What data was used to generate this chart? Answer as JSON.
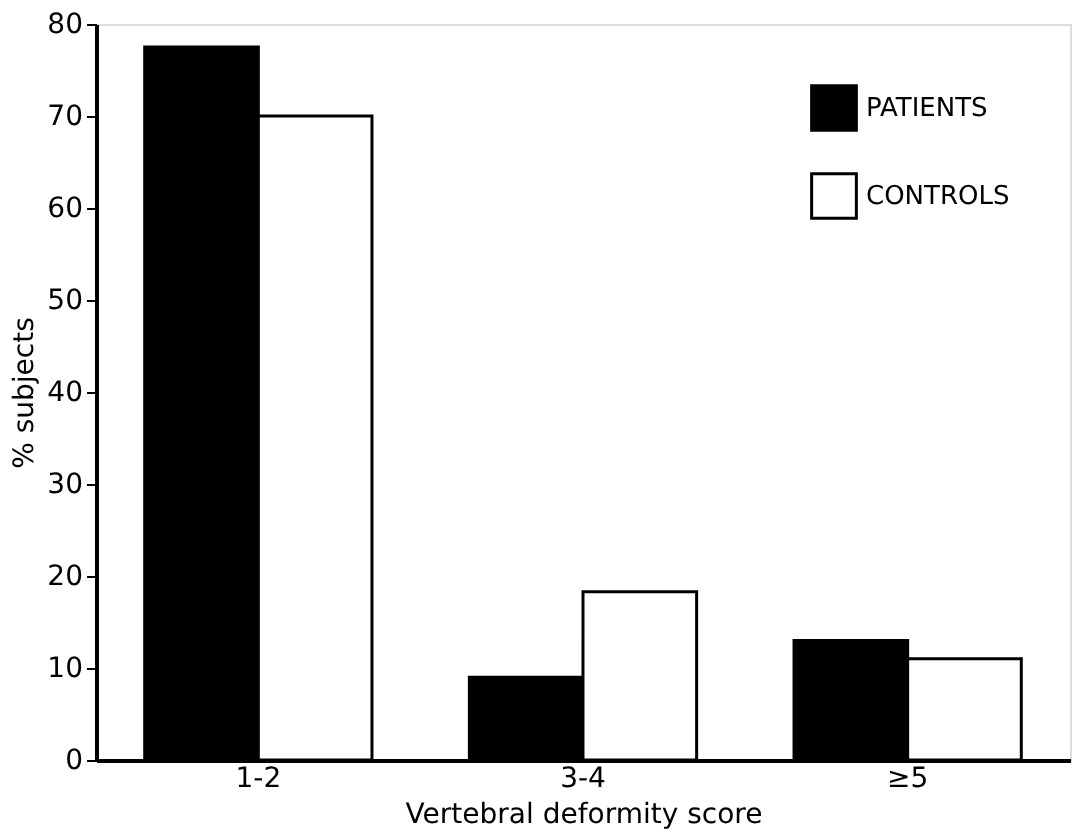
{
  "chart_data": {
    "type": "bar",
    "xlabel": "Vertebral deformity score",
    "ylabel": "% subjects",
    "categories": [
      "1-2",
      "3-4",
      "≥5"
    ],
    "series": [
      {
        "name": "PATIENTS",
        "color": "#000000",
        "values": [
          77.5,
          9,
          13
        ]
      },
      {
        "name": "CONTROLS",
        "color": "#ffffff",
        "values": [
          70,
          18.3,
          11
        ]
      }
    ],
    "ylim": [
      0,
      80
    ],
    "yticks": [
      0,
      10,
      20,
      30,
      40,
      50,
      60,
      70,
      80
    ],
    "grid": false,
    "legend": "top right"
  }
}
